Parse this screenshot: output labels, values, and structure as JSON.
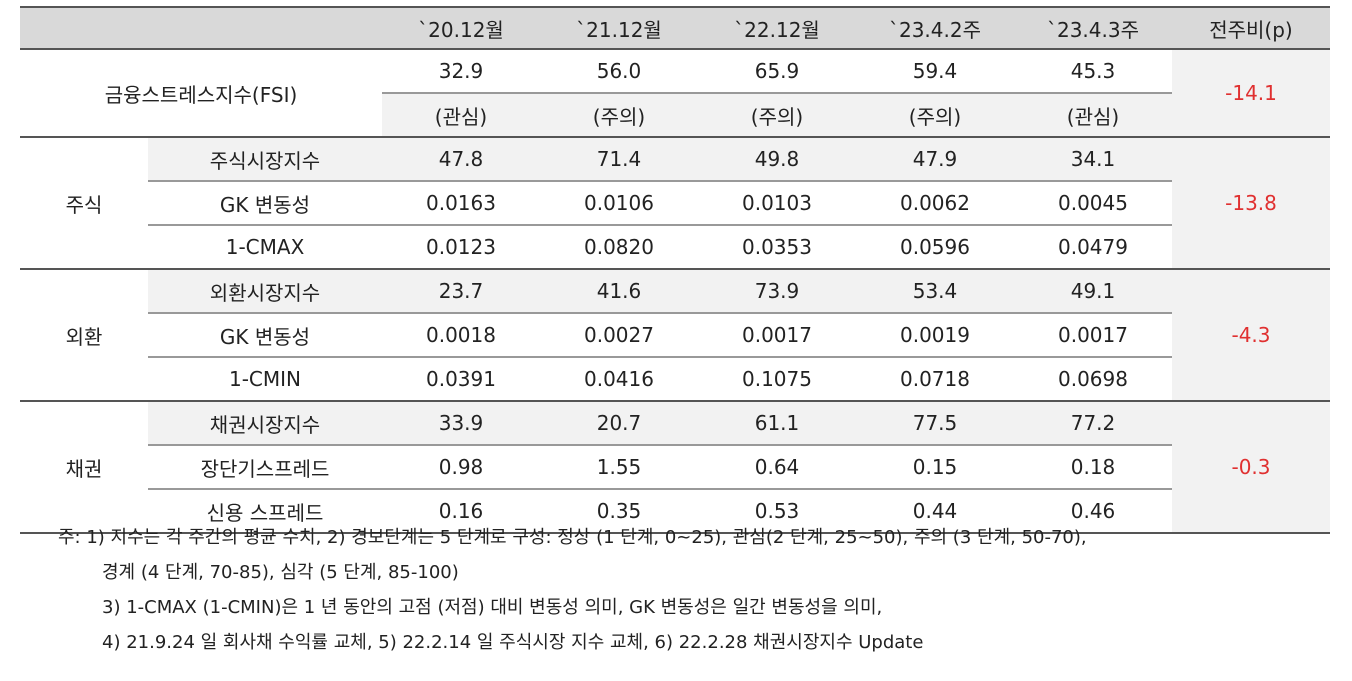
{
  "header": {
    "blank": "",
    "cols": [
      "`20.12월",
      "`21.12월",
      "`22.12월",
      "`23.4.2주",
      "`23.4.3주",
      "전주비(p)"
    ]
  },
  "fsi": {
    "label": "금융스트레스지수(FSI)",
    "values": [
      "32.9",
      "56.0",
      "65.9",
      "59.4",
      "45.3"
    ],
    "levels": [
      "(관심)",
      "(주의)",
      "(주의)",
      "(주의)",
      "(관심)"
    ],
    "wow": "-14.1"
  },
  "groups": [
    {
      "label": "주식",
      "wow": "-13.8",
      "rows": [
        {
          "label": "주식시장지수",
          "values": [
            "47.8",
            "71.4",
            "49.8",
            "47.9",
            "34.1"
          ]
        },
        {
          "label": "GK 변동성",
          "values": [
            "0.0163",
            "0.0106",
            "0.0103",
            "0.0062",
            "0.0045"
          ]
        },
        {
          "label": "1-CMAX",
          "values": [
            "0.0123",
            "0.0820",
            "0.0353",
            "0.0596",
            "0.0479"
          ]
        }
      ]
    },
    {
      "label": "외환",
      "wow": "-4.3",
      "rows": [
        {
          "label": "외환시장지수",
          "values": [
            "23.7",
            "41.6",
            "73.9",
            "53.4",
            "49.1"
          ]
        },
        {
          "label": "GK 변동성",
          "values": [
            "0.0018",
            "0.0027",
            "0.0017",
            "0.0019",
            "0.0017"
          ]
        },
        {
          "label": "1-CMIN",
          "values": [
            "0.0391",
            "0.0416",
            "0.1075",
            "0.0718",
            "0.0698"
          ]
        }
      ]
    },
    {
      "label": "채권",
      "wow": "-0.3",
      "rows": [
        {
          "label": "채권시장지수",
          "values": [
            "33.9",
            "20.7",
            "61.1",
            "77.5",
            "77.2"
          ]
        },
        {
          "label": "장단기스프레드",
          "values": [
            "0.98",
            "1.55",
            "0.64",
            "0.15",
            "0.18"
          ]
        },
        {
          "label": "신용 스프레드",
          "values": [
            "0.16",
            "0.35",
            "0.53",
            "0.44",
            "0.46"
          ]
        }
      ]
    }
  ],
  "notes": [
    "주: 1) 지수는 각 주간의 평균 수치, 2) 경보단계는 5 단계로 구성: 정상 (1 단계, 0~25), 관심(2 단계, 25~50), 주의 (3 단계, 50-70),",
    "경계 (4 단계, 70-85), 심각 (5 단계, 85-100)",
    "3) 1-CMAX (1-CMIN)은 1 년 동안의 고점 (저점) 대비 변동성 의미, GK 변동성은 일간 변동성을 의미,",
    "4) 21.9.24 일 회사채 수익률 교체, 5) 22.2.14 일 주식시장 지수 교체, 6) 22.2.28 채권시장지수 Update"
  ],
  "colors": {
    "header_bg": "#d9d9d9",
    "shade_bg": "#f2f2f2",
    "negative_red": "#e03030"
  }
}
